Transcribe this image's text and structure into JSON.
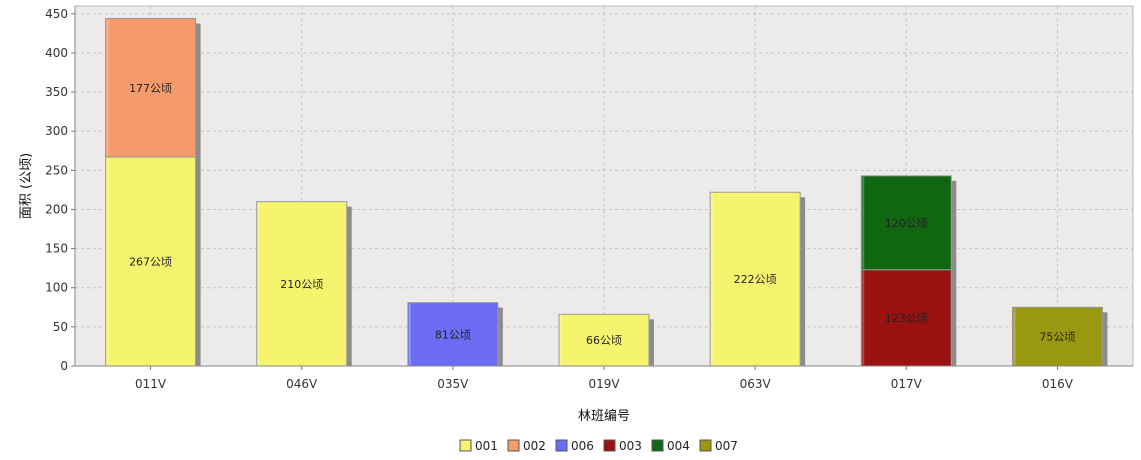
{
  "chart_data": {
    "type": "bar",
    "stacked": true,
    "categories": [
      "011V",
      "046V",
      "035V",
      "019V",
      "063V",
      "017V",
      "016V"
    ],
    "series": [
      {
        "name": "001",
        "color": "#f4f46e",
        "values": [
          267,
          210,
          0,
          66,
          222,
          0,
          0
        ]
      },
      {
        "name": "002",
        "color": "#f59a6b",
        "values": [
          177,
          0,
          0,
          0,
          0,
          0,
          0
        ]
      },
      {
        "name": "006",
        "color": "#6b6bf4",
        "values": [
          0,
          0,
          81,
          0,
          0,
          0,
          0
        ]
      },
      {
        "name": "003",
        "color": "#991111",
        "values": [
          0,
          0,
          0,
          0,
          0,
          123,
          0
        ]
      },
      {
        "name": "004",
        "color": "#116611",
        "values": [
          0,
          0,
          0,
          0,
          0,
          120,
          0
        ]
      },
      {
        "name": "007",
        "color": "#999911",
        "values": [
          0,
          0,
          0,
          0,
          0,
          0,
          75
        ]
      }
    ],
    "value_unit": "公顷",
    "xlabel": "林班编号",
    "ylabel": "面积 (公顷)",
    "ylim": [
      0,
      460
    ],
    "yticks": [
      0,
      50,
      100,
      150,
      200,
      250,
      300,
      350,
      400,
      450
    ],
    "grid": true,
    "legend_position": "bottom"
  }
}
